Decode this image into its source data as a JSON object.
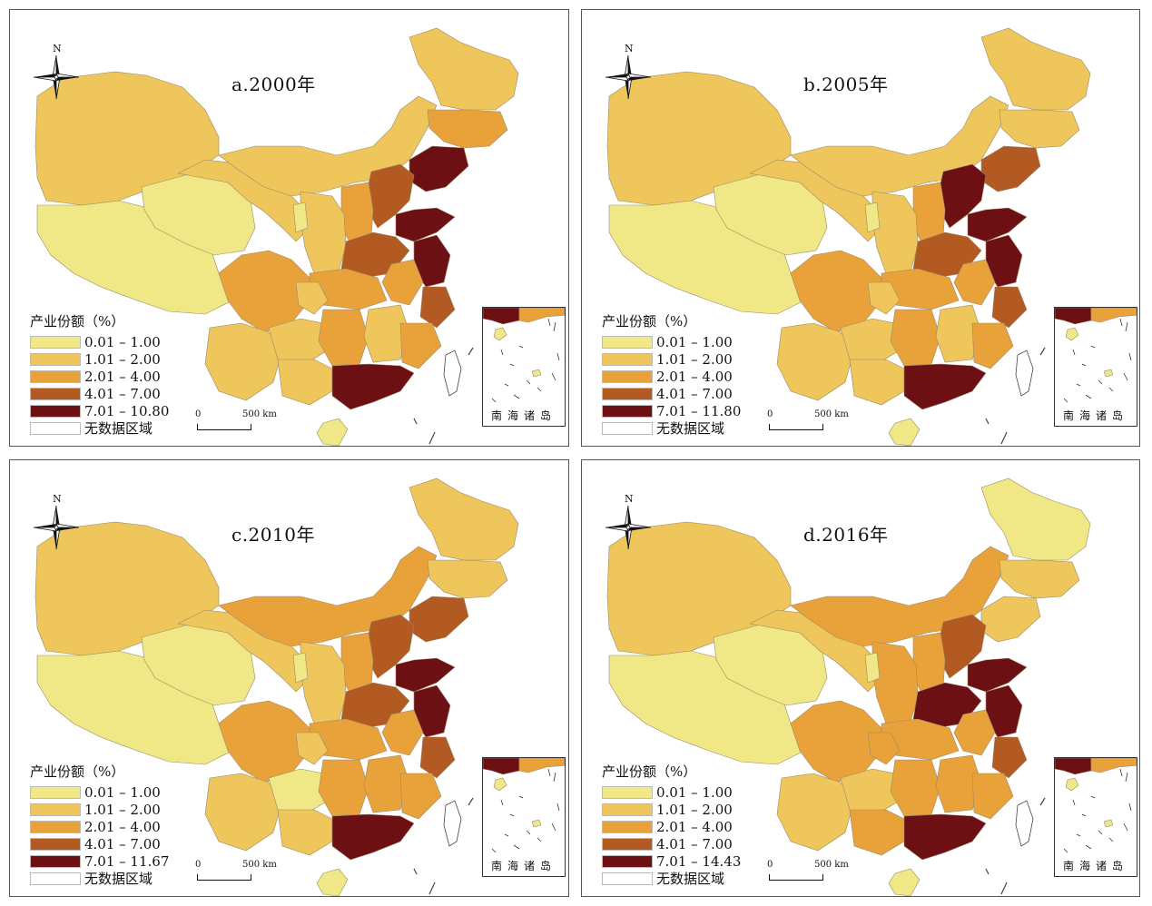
{
  "colors": {
    "c1": "#f0e886",
    "c2": "#eec65c",
    "c3": "#e9a23a",
    "c4": "#b25a22",
    "c5": "#6d1014",
    "nodata": "#ffffff"
  },
  "legend_title": "产业份额（%）",
  "nodata_label": "无数据区域",
  "scale": {
    "zero": "0",
    "dist": "500 km"
  },
  "north_label": "N",
  "inset_label": "南海诸岛",
  "panels": [
    {
      "title": "a.2000年",
      "legend": [
        "0.01 – 1.00",
        "1.01 – 2.00",
        "2.01 – 4.00",
        "4.01 – 7.00",
        "7.01 – 10.80"
      ]
    },
    {
      "title": "b.2005年",
      "legend": [
        "0.01 – 1.00",
        "1.01 – 2.00",
        "2.01 – 4.00",
        "4.01 – 7.00",
        "7.01 – 11.80"
      ]
    },
    {
      "title": "c.2010年",
      "legend": [
        "0.01 – 1.00",
        "1.01 – 2.00",
        "2.01 – 4.00",
        "4.01 – 7.00",
        "7.01 – 11.67"
      ]
    },
    {
      "title": "d.2016年",
      "legend": [
        "0.01 – 1.00",
        "1.01 – 2.00",
        "2.01 – 4.00",
        "4.01 – 7.00",
        "7.01 – 14.43"
      ]
    }
  ],
  "map_classes": [
    {
      "xinjiang": 2,
      "tibet": 1,
      "qinghai": 1,
      "gansu": 2,
      "neimenggu": 2,
      "heilongjiang": 2,
      "jilin": 3,
      "liaoning": 5,
      "hebei": 4,
      "beijing": 3,
      "shandong": 5,
      "shanxi": 3,
      "shaanxi": 2,
      "ningxia": 1,
      "henan": 4,
      "jiangsu": 5,
      "anhui": 3,
      "hubei": 3,
      "sichuan": 3,
      "chongqing": 2,
      "yunnan": 2,
      "guizhou": 2,
      "hunan": 3,
      "jiangxi": 2,
      "zhejiang": 4,
      "fujian": 3,
      "guangxi": 2,
      "guangdong": 5,
      "hainan": 1
    },
    {
      "xinjiang": 2,
      "tibet": 1,
      "qinghai": 1,
      "gansu": 2,
      "neimenggu": 2,
      "heilongjiang": 2,
      "jilin": 2,
      "liaoning": 4,
      "hebei": 5,
      "beijing": 3,
      "shandong": 5,
      "shanxi": 3,
      "shaanxi": 2,
      "ningxia": 1,
      "henan": 4,
      "jiangsu": 5,
      "anhui": 3,
      "hubei": 3,
      "sichuan": 3,
      "chongqing": 2,
      "yunnan": 2,
      "guizhou": 2,
      "hunan": 3,
      "jiangxi": 2,
      "zhejiang": 4,
      "fujian": 3,
      "guangxi": 2,
      "guangdong": 5,
      "hainan": 1
    },
    {
      "xinjiang": 2,
      "tibet": 1,
      "qinghai": 1,
      "gansu": 2,
      "neimenggu": 3,
      "heilongjiang": 2,
      "jilin": 2,
      "liaoning": 4,
      "hebei": 4,
      "beijing": 3,
      "shandong": 5,
      "shanxi": 3,
      "shaanxi": 2,
      "ningxia": 1,
      "henan": 4,
      "jiangsu": 5,
      "anhui": 3,
      "hubei": 3,
      "sichuan": 3,
      "chongqing": 2,
      "yunnan": 2,
      "guizhou": 1,
      "hunan": 3,
      "jiangxi": 3,
      "zhejiang": 4,
      "fujian": 3,
      "guangxi": 2,
      "guangdong": 5,
      "hainan": 1
    },
    {
      "xinjiang": 2,
      "tibet": 1,
      "qinghai": 1,
      "gansu": 2,
      "neimenggu": 3,
      "heilongjiang": 1,
      "jilin": 2,
      "liaoning": 2,
      "hebei": 4,
      "beijing": 3,
      "shandong": 5,
      "shanxi": 3,
      "shaanxi": 3,
      "ningxia": 1,
      "henan": 5,
      "jiangsu": 5,
      "anhui": 3,
      "hubei": 3,
      "sichuan": 3,
      "chongqing": 3,
      "yunnan": 2,
      "guizhou": 2,
      "hunan": 3,
      "jiangxi": 3,
      "zhejiang": 4,
      "fujian": 3,
      "guangxi": 3,
      "guangdong": 5,
      "hainan": 1
    }
  ]
}
